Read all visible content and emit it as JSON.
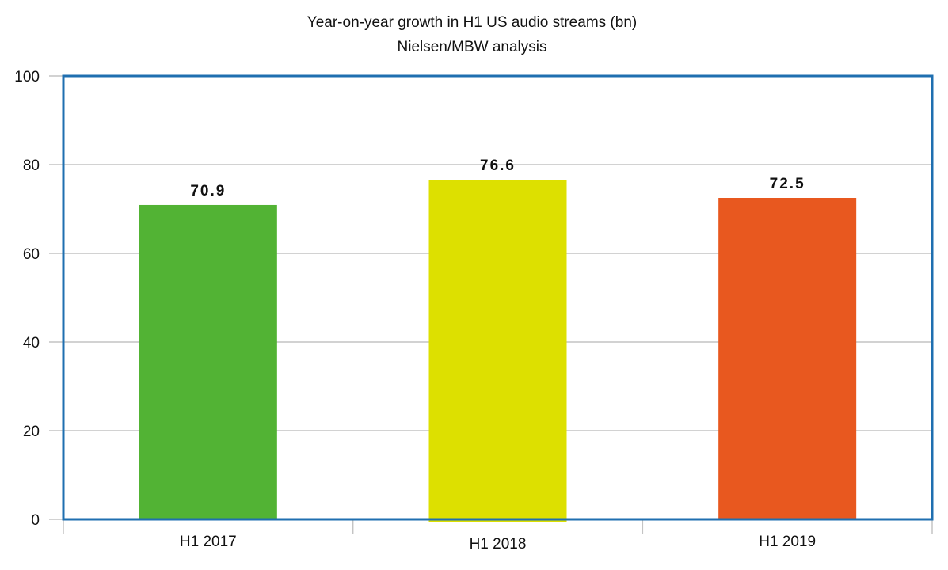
{
  "chart_data": {
    "type": "bar",
    "title": "Year-on-year growth in H1 US audio streams (bn)",
    "subtitle": "Nielsen/MBW analysis",
    "categories": [
      "H1 2017",
      "H1 2018",
      "H1 2019"
    ],
    "values": [
      70.9,
      76.6,
      72.5
    ],
    "data_labels": [
      "70.9",
      "76.6",
      "72.5"
    ],
    "bar_colors": [
      "#52b334",
      "#dde000",
      "#e8581f"
    ],
    "frame_color": "#1f6fb0",
    "ylim": [
      0,
      100
    ],
    "yticks": [
      "0",
      "20",
      "40",
      "60",
      "80",
      "100"
    ],
    "grid": true,
    "legend": "none",
    "xlabel": "",
    "ylabel": ""
  }
}
